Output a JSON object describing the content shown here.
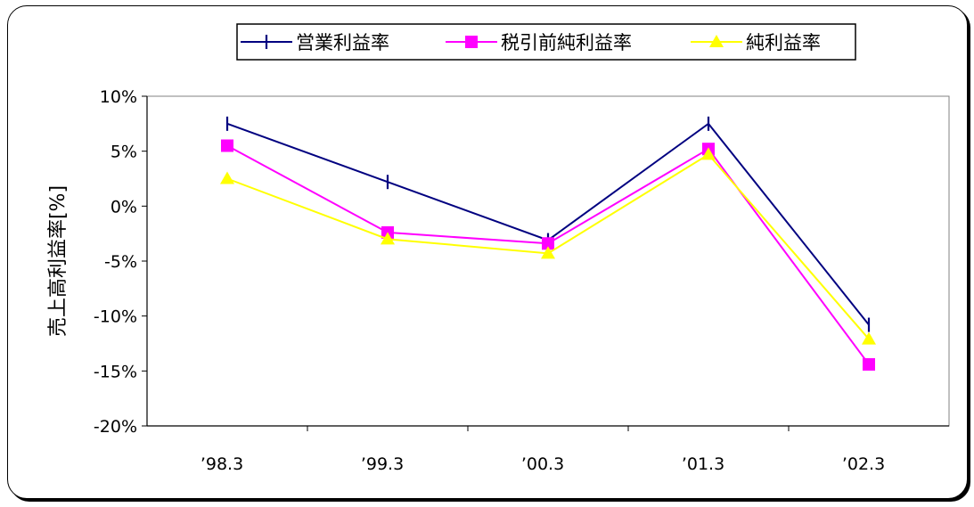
{
  "chart_data": {
    "type": "line",
    "title": "",
    "xlabel": "",
    "ylabel": "売上高利益率[%]",
    "ylim": [
      -20,
      10
    ],
    "yticks": [
      10,
      5,
      0,
      -5,
      -10,
      -15,
      -20
    ],
    "ytick_labels": [
      "10%",
      "5%",
      "0%",
      "-5%",
      "-10%",
      "-15%",
      "-20%"
    ],
    "categories": [
      "’98.3",
      "’99.3",
      "’00.3",
      "’01.3",
      "’02.3"
    ],
    "grid": false,
    "legend_position": "top",
    "series": [
      {
        "name": "営業利益率",
        "color": "#000080",
        "marker": "plus",
        "values": [
          7.5,
          2.2,
          -3.1,
          7.5,
          -10.8
        ]
      },
      {
        "name": "税引前純利益率",
        "color": "#ff00ff",
        "marker": "square",
        "values": [
          5.5,
          -2.4,
          -3.4,
          5.2,
          -14.4
        ]
      },
      {
        "name": "純利益率",
        "color": "#ffff00",
        "marker": "triangle",
        "values": [
          2.5,
          -3.0,
          -4.3,
          4.7,
          -12.1
        ]
      }
    ]
  }
}
